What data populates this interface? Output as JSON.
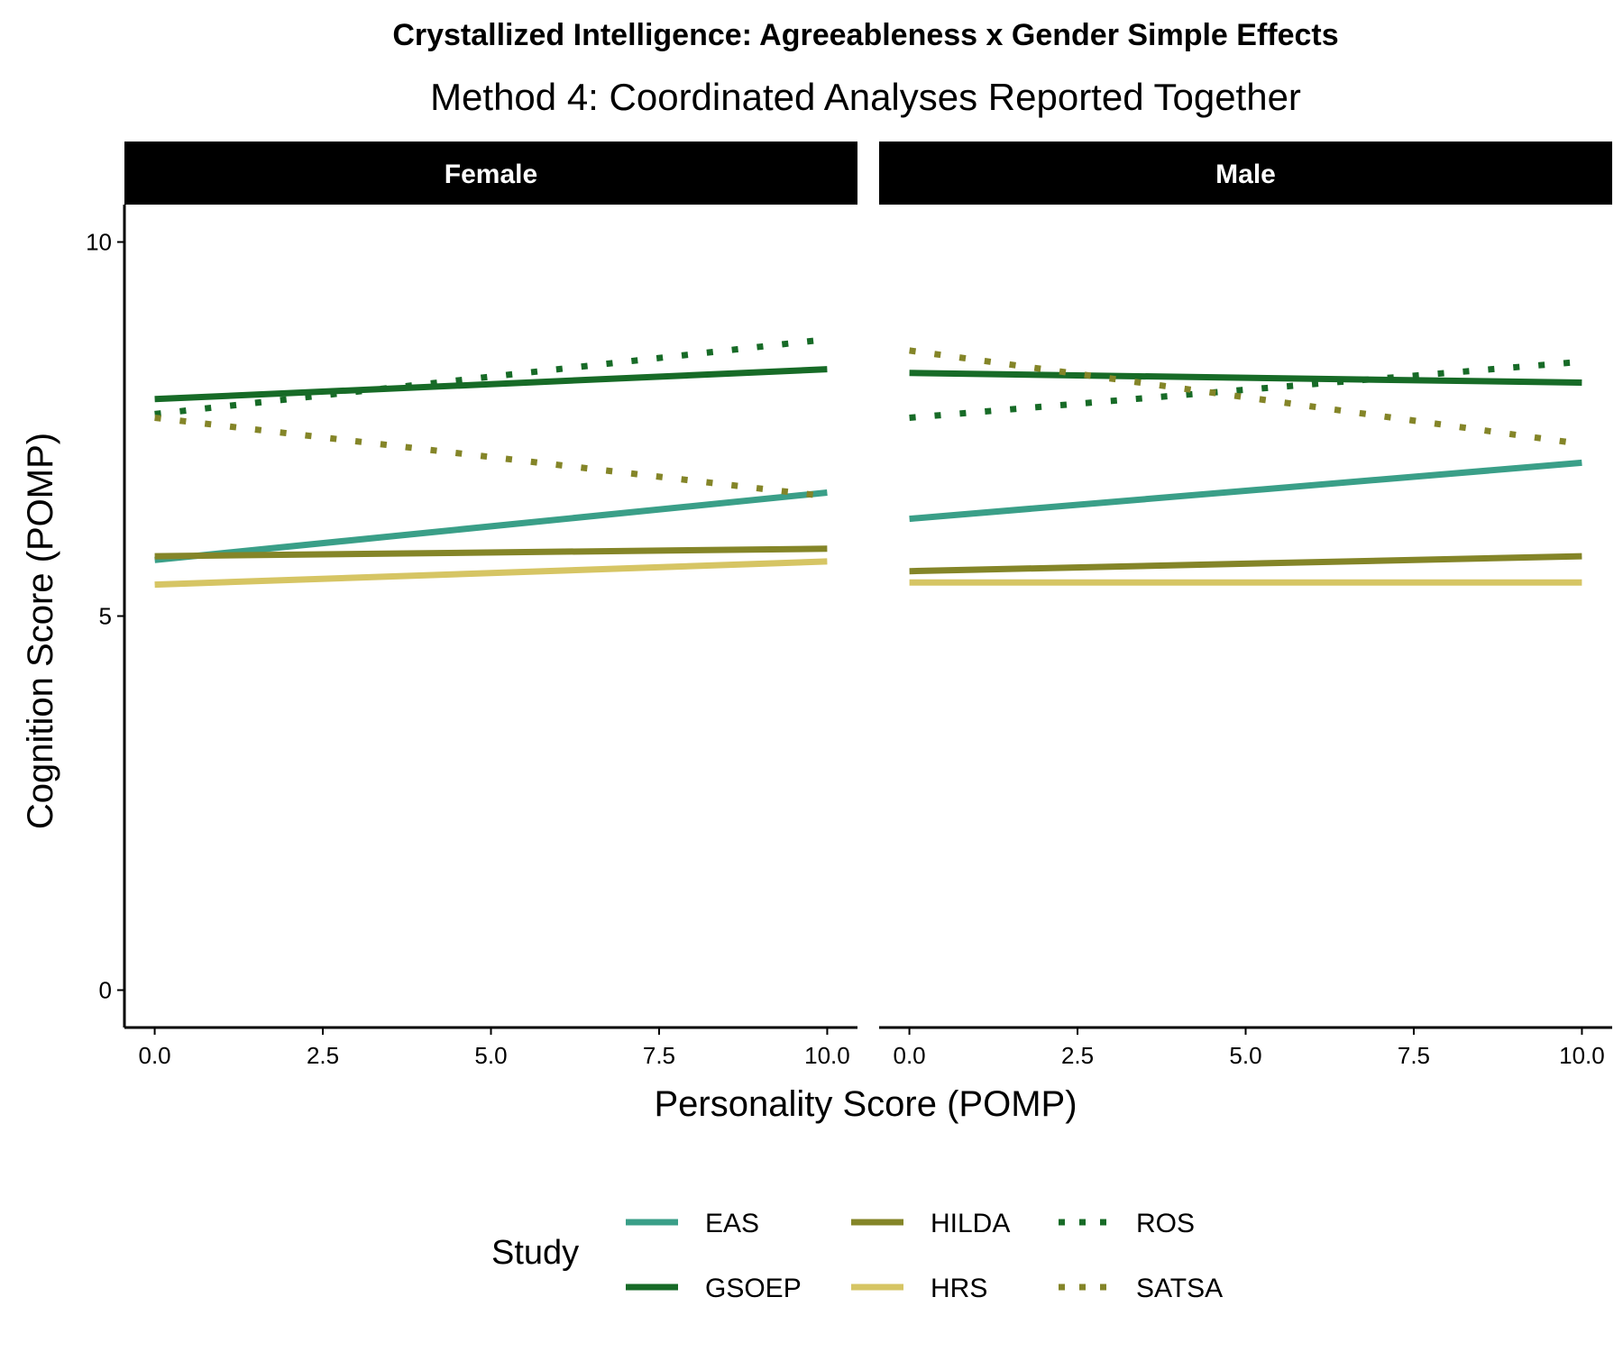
{
  "chart_data": {
    "type": "line",
    "title": "Crystallized Intelligence: Agreeableness x Gender Simple Effects",
    "subtitle": "Method 4: Coordinated Analyses Reported Together",
    "xlabel": "Personality Score (POMP)",
    "ylabel": "Cognition Score (POMP)",
    "xlim": [
      -0.45,
      10.45
    ],
    "ylim": [
      -0.5,
      10.5
    ],
    "x_ticks": [
      0,
      2.5,
      5,
      7.5,
      10
    ],
    "x_tick_labels": [
      "0.0",
      "2.5",
      "5.0",
      "7.5",
      "10.0"
    ],
    "y_ticks": [
      0,
      5,
      10
    ],
    "y_tick_labels": [
      "0",
      "5",
      "10"
    ],
    "grid": false,
    "legend": {
      "title": "Study",
      "position": "bottom",
      "entries": [
        "EAS",
        "GSOEP",
        "HILDA",
        "HRS",
        "ROS",
        "SATSA"
      ]
    },
    "styles": {
      "EAS": {
        "color": "#3a9f88",
        "dash": "solid"
      },
      "GSOEP": {
        "color": "#176b27",
        "dash": "solid"
      },
      "HILDA": {
        "color": "#848528",
        "dash": "solid"
      },
      "HRS": {
        "color": "#d6c564",
        "dash": "solid"
      },
      "ROS": {
        "color": "#176b27",
        "dash": "dotted"
      },
      "SATSA": {
        "color": "#848528",
        "dash": "dotted"
      }
    },
    "panels": [
      {
        "label": "Female",
        "series": [
          {
            "name": "EAS",
            "x": [
              0,
              10
            ],
            "y": [
              5.75,
              6.65
            ]
          },
          {
            "name": "GSOEP",
            "x": [
              0,
              10
            ],
            "y": [
              7.9,
              8.3
            ]
          },
          {
            "name": "HILDA",
            "x": [
              0,
              10
            ],
            "y": [
              5.8,
              5.9
            ]
          },
          {
            "name": "HRS",
            "x": [
              0,
              10
            ],
            "y": [
              5.42,
              5.73
            ]
          },
          {
            "name": "ROS",
            "x": [
              0,
              10
            ],
            "y": [
              7.7,
              8.7
            ]
          },
          {
            "name": "SATSA",
            "x": [
              0,
              10
            ],
            "y": [
              7.65,
              6.6
            ]
          }
        ]
      },
      {
        "label": "Male",
        "series": [
          {
            "name": "EAS",
            "x": [
              0,
              10
            ],
            "y": [
              6.3,
              7.05
            ]
          },
          {
            "name": "GSOEP",
            "x": [
              0,
              10
            ],
            "y": [
              8.25,
              8.12
            ]
          },
          {
            "name": "HILDA",
            "x": [
              0,
              10
            ],
            "y": [
              5.6,
              5.8
            ]
          },
          {
            "name": "HRS",
            "x": [
              0,
              10
            ],
            "y": [
              5.45,
              5.45
            ]
          },
          {
            "name": "ROS",
            "x": [
              0,
              10
            ],
            "y": [
              7.65,
              8.4
            ]
          },
          {
            "name": "SATSA",
            "x": [
              0,
              10
            ],
            "y": [
              8.55,
              7.3
            ]
          }
        ]
      }
    ]
  }
}
